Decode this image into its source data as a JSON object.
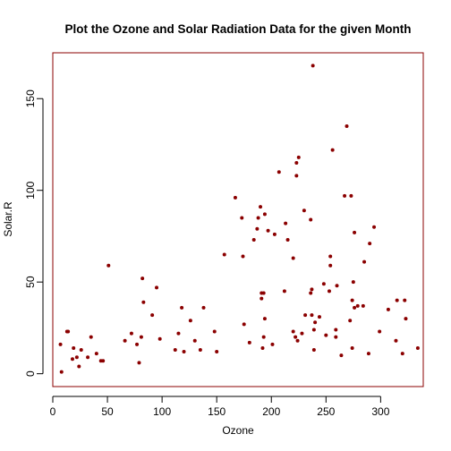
{
  "chart_data": {
    "type": "scatter",
    "title": "Plot the Ozone and Solar Radiation Data for the given Month",
    "xlabel": "Ozone",
    "ylabel": "Solar.R",
    "xlim": [
      0,
      339
    ],
    "ylim": [
      -7,
      175
    ],
    "xticks": [
      0,
      50,
      100,
      150,
      200,
      250,
      300
    ],
    "yticks": [
      0,
      50,
      100,
      150
    ],
    "grid": false,
    "legend": "none",
    "colors": {
      "points": "#8b0000",
      "box": "#8b0000",
      "axis": "#000000"
    },
    "points": [
      [
        7,
        16
      ],
      [
        8,
        1
      ],
      [
        13,
        23
      ],
      [
        14,
        23
      ],
      [
        18,
        8
      ],
      [
        19,
        14
      ],
      [
        22,
        9
      ],
      [
        24,
        4
      ],
      [
        26,
        13
      ],
      [
        32,
        9
      ],
      [
        35,
        20
      ],
      [
        40,
        11
      ],
      [
        44,
        7
      ],
      [
        46,
        7
      ],
      [
        51,
        59
      ],
      [
        66,
        18
      ],
      [
        72,
        22
      ],
      [
        77,
        16
      ],
      [
        79,
        6
      ],
      [
        81,
        20
      ],
      [
        82,
        52
      ],
      [
        83,
        39
      ],
      [
        91,
        32
      ],
      [
        95,
        47
      ],
      [
        98,
        19
      ],
      [
        112,
        13
      ],
      [
        115,
        22
      ],
      [
        118,
        36
      ],
      [
        120,
        12
      ],
      [
        126,
        29
      ],
      [
        130,
        18
      ],
      [
        135,
        13
      ],
      [
        138,
        36
      ],
      [
        148,
        23
      ],
      [
        150,
        12
      ],
      [
        157,
        65
      ],
      [
        167,
        96
      ],
      [
        173,
        85
      ],
      [
        174,
        64
      ],
      [
        175,
        27
      ],
      [
        180,
        17
      ],
      [
        184,
        73
      ],
      [
        187,
        79
      ],
      [
        188,
        85
      ],
      [
        190,
        91
      ],
      [
        191,
        44
      ],
      [
        191,
        41
      ],
      [
        192,
        14
      ],
      [
        193,
        20
      ],
      [
        193,
        44
      ],
      [
        194,
        30
      ],
      [
        194,
        87
      ],
      [
        197,
        78
      ],
      [
        201,
        16
      ],
      [
        203,
        76
      ],
      [
        207,
        110
      ],
      [
        212,
        45
      ],
      [
        213,
        82
      ],
      [
        215,
        73
      ],
      [
        220,
        23
      ],
      [
        220,
        63
      ],
      [
        222,
        20
      ],
      [
        223,
        108
      ],
      [
        223,
        115
      ],
      [
        224,
        18
      ],
      [
        225,
        118
      ],
      [
        228,
        22
      ],
      [
        230,
        89
      ],
      [
        231,
        32
      ],
      [
        236,
        84
      ],
      [
        236,
        44
      ],
      [
        237,
        32
      ],
      [
        237,
        46
      ],
      [
        238,
        168
      ],
      [
        239,
        13
      ],
      [
        239,
        24
      ],
      [
        240,
        28
      ],
      [
        244,
        31
      ],
      [
        248,
        49
      ],
      [
        250,
        21
      ],
      [
        253,
        45
      ],
      [
        254,
        64
      ],
      [
        254,
        59
      ],
      [
        256,
        122
      ],
      [
        259,
        24
      ],
      [
        259,
        20
      ],
      [
        260,
        48
      ],
      [
        264,
        10
      ],
      [
        267,
        97
      ],
      [
        269,
        135
      ],
      [
        272,
        29
      ],
      [
        273,
        97
      ],
      [
        274,
        40
      ],
      [
        274,
        14
      ],
      [
        275,
        50
      ],
      [
        276,
        77
      ],
      [
        276,
        36
      ],
      [
        279,
        37
      ],
      [
        284,
        37
      ],
      [
        285,
        61
      ],
      [
        289,
        11
      ],
      [
        290,
        71
      ],
      [
        294,
        80
      ],
      [
        299,
        23
      ],
      [
        307,
        35
      ],
      [
        314,
        18
      ],
      [
        315,
        40
      ],
      [
        320,
        11
      ],
      [
        322,
        40
      ],
      [
        323,
        30
      ],
      [
        334,
        14
      ]
    ]
  }
}
